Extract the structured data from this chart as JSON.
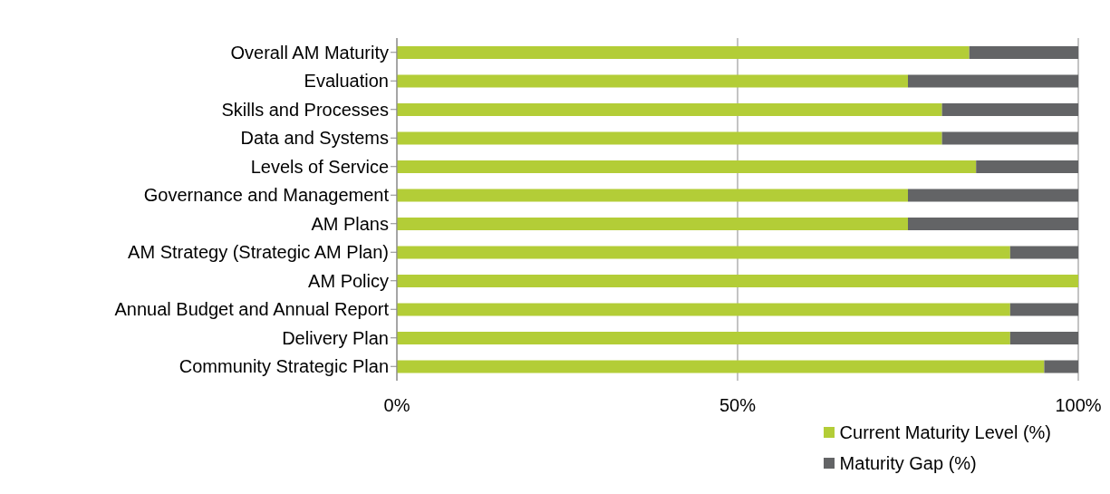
{
  "chart_data": {
    "type": "bar",
    "orientation": "horizontal",
    "stacked": true,
    "categories": [
      "Overall AM Maturity",
      "Evaluation",
      "Skills and Processes",
      "Data and Systems",
      "Levels of Service",
      "Governance and Management",
      "AM Plans",
      "AM Strategy (Strategic AM Plan)",
      "AM Policy",
      "Annual Budget and Annual Report",
      "Delivery Plan",
      "Community Strategic Plan"
    ],
    "series": [
      {
        "name": "Current Maturity Level (%)",
        "color": "#b3cd37",
        "values": [
          84,
          75,
          80,
          80,
          85,
          75,
          75,
          90,
          100,
          90,
          90,
          95
        ]
      },
      {
        "name": "Maturity Gap (%)",
        "color": "#636466",
        "values": [
          16,
          25,
          20,
          20,
          15,
          25,
          25,
          10,
          0,
          10,
          10,
          5
        ]
      }
    ],
    "xlim": [
      0,
      100
    ],
    "xticks": [
      {
        "value": 0,
        "label": "0%"
      },
      {
        "value": 50,
        "label": "50%"
      },
      {
        "value": 100,
        "label": "100%"
      }
    ],
    "grid": "x",
    "legend": "bottom right"
  }
}
